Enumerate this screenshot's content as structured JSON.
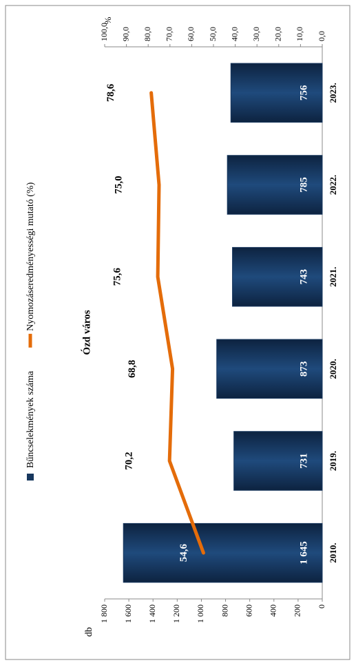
{
  "chart_data": {
    "type": "bar_line",
    "title": "Ózd város",
    "y_label": "db",
    "y2_label": "%",
    "categories": [
      "2010.",
      "2019.",
      "2020.",
      "2021.",
      "2022.",
      "2023."
    ],
    "series": [
      {
        "name": "Bűncselekmények száma",
        "type": "bar",
        "color": "#17375e",
        "values": [
          1645,
          731,
          873,
          743,
          785,
          756
        ],
        "value_labels": [
          "1 645",
          "731",
          "873",
          "743",
          "785",
          "756"
        ]
      },
      {
        "name": "Nyomozáseredményességi mutató (%)",
        "type": "line",
        "color": "#e46c0a",
        "axis": "y2",
        "values": [
          54.6,
          70.2,
          68.8,
          75.6,
          75.0,
          78.6
        ],
        "value_labels": [
          "54,6",
          "70,2",
          "68,8",
          "75,6",
          "75,0",
          "78,6"
        ]
      }
    ],
    "ylim": [
      0,
      1800
    ],
    "yticks": [
      0,
      200,
      400,
      600,
      800,
      {
        "value": 1000,
        "label": "1 000"
      },
      {
        "value": 1200,
        "label": "1 200"
      },
      {
        "value": 1400,
        "label": "1 400"
      },
      {
        "value": 1600,
        "label": "1 600"
      },
      {
        "value": 1800,
        "label": "1 800"
      }
    ],
    "y2lim": [
      0,
      100
    ],
    "y2ticks": [
      {
        "value": 0,
        "label": "0,0"
      },
      {
        "value": 10,
        "label": "10,0"
      },
      {
        "value": 20,
        "label": "20,0"
      },
      {
        "value": 30,
        "label": "30,0"
      },
      {
        "value": 40,
        "label": "40,0"
      },
      {
        "value": 50,
        "label": "50,0"
      },
      {
        "value": 60,
        "label": "60,0"
      },
      {
        "value": 70,
        "label": "70,0"
      },
      {
        "value": 80,
        "label": "80,0"
      },
      {
        "value": 90,
        "label": "90,0"
      },
      {
        "value": 100,
        "label": "100,0"
      }
    ],
    "grid": false,
    "legend": "top"
  }
}
